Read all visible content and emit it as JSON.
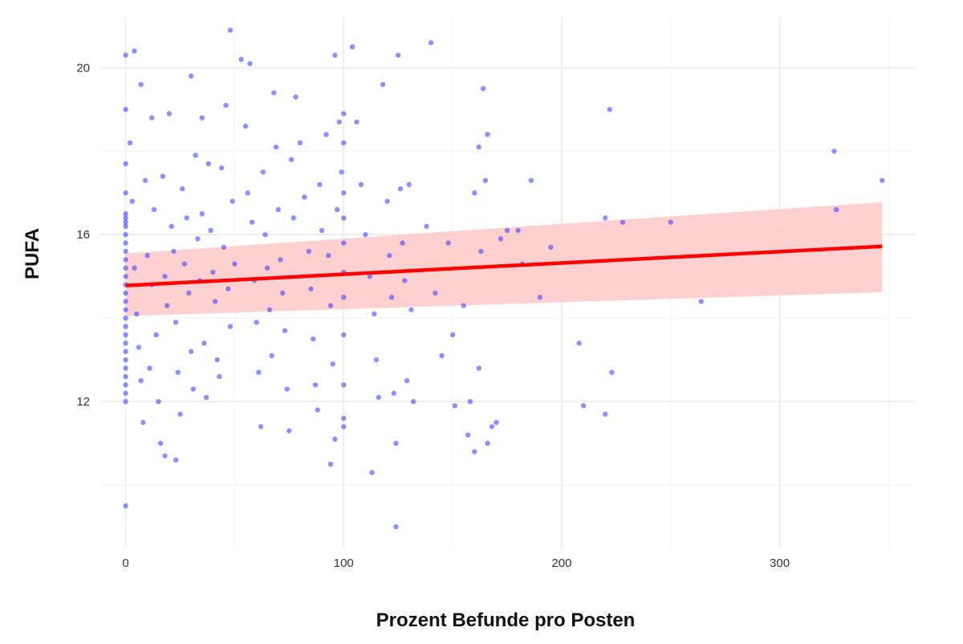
{
  "chart_data": {
    "type": "scatter",
    "title": "",
    "xlabel": "Prozent Befunde pro Posten",
    "ylabel": "PUFA",
    "xlim": [
      -12,
      362
    ],
    "ylim": [
      8.5,
      21.2
    ],
    "x_ticks": [
      0,
      100,
      200,
      300
    ],
    "x_tick_labels": [
      "0",
      "100",
      "200",
      "300"
    ],
    "x_minor_gridlines": [
      50,
      150,
      250,
      350
    ],
    "y_ticks": [
      12,
      16,
      20
    ],
    "y_tick_labels": [
      "12",
      "16",
      "20"
    ],
    "y_minor_gridlines": [
      10,
      14,
      18
    ],
    "grid": true,
    "legend": "none",
    "point_color": "#3333ff",
    "point_opacity": 0.55,
    "trend_line": {
      "color": "#ff0000",
      "x": [
        0,
        347
      ],
      "y": [
        14.78,
        15.72
      ]
    },
    "confidence_band": {
      "color": "#ffc8c8",
      "x": [
        0,
        347
      ],
      "lower": [
        14.05,
        14.62
      ],
      "upper": [
        15.55,
        16.78
      ]
    },
    "points": [
      [
        0,
        20.3
      ],
      [
        4,
        20.4
      ],
      [
        0,
        19.0
      ],
      [
        0,
        17.7
      ],
      [
        0,
        17.0
      ],
      [
        0,
        16.5
      ],
      [
        0,
        16.4
      ],
      [
        0,
        16.3
      ],
      [
        0,
        16.2
      ],
      [
        0,
        16.0
      ],
      [
        0,
        15.8
      ],
      [
        0,
        15.6
      ],
      [
        0,
        15.4
      ],
      [
        0,
        15.2
      ],
      [
        0,
        15.0
      ],
      [
        0,
        14.8
      ],
      [
        0,
        14.6
      ],
      [
        0,
        14.4
      ],
      [
        0,
        14.2
      ],
      [
        0,
        14.0
      ],
      [
        0,
        13.8
      ],
      [
        0,
        13.6
      ],
      [
        0,
        13.4
      ],
      [
        0,
        13.2
      ],
      [
        0,
        13.0
      ],
      [
        0,
        12.8
      ],
      [
        0,
        12.6
      ],
      [
        0,
        12.4
      ],
      [
        0,
        12.2
      ],
      [
        0,
        12.0
      ],
      [
        0,
        9.5
      ],
      [
        2,
        18.2
      ],
      [
        3,
        16.8
      ],
      [
        4,
        15.2
      ],
      [
        5,
        14.1
      ],
      [
        6,
        13.3
      ],
      [
        7,
        12.5
      ],
      [
        8,
        11.5
      ],
      [
        9,
        17.3
      ],
      [
        10,
        15.5
      ],
      [
        11,
        12.8
      ],
      [
        7,
        19.6
      ],
      [
        12,
        18.8
      ],
      [
        12,
        14.8
      ],
      [
        13,
        16.6
      ],
      [
        14,
        13.6
      ],
      [
        15,
        12.0
      ],
      [
        16,
        11.0
      ],
      [
        17,
        17.4
      ],
      [
        18,
        15.0
      ],
      [
        19,
        14.3
      ],
      [
        20,
        18.9
      ],
      [
        21,
        16.2
      ],
      [
        22,
        15.6
      ],
      [
        23,
        13.9
      ],
      [
        24,
        12.7
      ],
      [
        25,
        11.7
      ],
      [
        26,
        17.1
      ],
      [
        27,
        15.3
      ],
      [
        23,
        10.6
      ],
      [
        18,
        10.7
      ],
      [
        28,
        16.4
      ],
      [
        29,
        14.6
      ],
      [
        30,
        13.2
      ],
      [
        31,
        12.3
      ],
      [
        32,
        17.9
      ],
      [
        33,
        15.9
      ],
      [
        34,
        14.9
      ],
      [
        35,
        16.5
      ],
      [
        36,
        13.4
      ],
      [
        37,
        12.1
      ],
      [
        30,
        19.8
      ],
      [
        35,
        18.8
      ],
      [
        38,
        17.7
      ],
      [
        39,
        16.1
      ],
      [
        40,
        15.1
      ],
      [
        41,
        14.4
      ],
      [
        42,
        13.0
      ],
      [
        43,
        12.6
      ],
      [
        44,
        17.6
      ],
      [
        45,
        15.7
      ],
      [
        46,
        19.1
      ],
      [
        47,
        14.7
      ],
      [
        48,
        13.8
      ],
      [
        49,
        16.8
      ],
      [
        50,
        15.3
      ],
      [
        48,
        20.9
      ],
      [
        53,
        20.2
      ],
      [
        57,
        20.1
      ],
      [
        55,
        18.6
      ],
      [
        56,
        17.0
      ],
      [
        58,
        16.3
      ],
      [
        59,
        14.9
      ],
      [
        60,
        13.9
      ],
      [
        61,
        12.7
      ],
      [
        62,
        11.4
      ],
      [
        63,
        17.5
      ],
      [
        64,
        16.0
      ],
      [
        65,
        15.2
      ],
      [
        66,
        14.2
      ],
      [
        67,
        13.1
      ],
      [
        68,
        19.4
      ],
      [
        69,
        18.1
      ],
      [
        70,
        16.6
      ],
      [
        71,
        15.4
      ],
      [
        72,
        14.6
      ],
      [
        73,
        13.7
      ],
      [
        74,
        12.3
      ],
      [
        75,
        11.3
      ],
      [
        76,
        17.8
      ],
      [
        77,
        16.4
      ],
      [
        78,
        19.3
      ],
      [
        80,
        18.2
      ],
      [
        82,
        16.9
      ],
      [
        84,
        15.6
      ],
      [
        85,
        14.7
      ],
      [
        86,
        13.5
      ],
      [
        87,
        12.4
      ],
      [
        88,
        11.8
      ],
      [
        89,
        17.2
      ],
      [
        90,
        16.1
      ],
      [
        92,
        18.4
      ],
      [
        93,
        15.5
      ],
      [
        94,
        14.3
      ],
      [
        95,
        12.9
      ],
      [
        96,
        11.1
      ],
      [
        96,
        20.3
      ],
      [
        98,
        18.7
      ],
      [
        99,
        17.5
      ],
      [
        97,
        16.6
      ],
      [
        94,
        10.5
      ],
      [
        100,
        18.9
      ],
      [
        100,
        18.2
      ],
      [
        100,
        17.0
      ],
      [
        100,
        16.4
      ],
      [
        100,
        15.8
      ],
      [
        100,
        15.1
      ],
      [
        100,
        14.5
      ],
      [
        100,
        13.6
      ],
      [
        100,
        12.4
      ],
      [
        100,
        11.6
      ],
      [
        100,
        11.4
      ],
      [
        104,
        20.5
      ],
      [
        106,
        18.7
      ],
      [
        108,
        17.2
      ],
      [
        110,
        16.0
      ],
      [
        112,
        15.0
      ],
      [
        114,
        14.1
      ],
      [
        115,
        13.0
      ],
      [
        116,
        12.1
      ],
      [
        113,
        10.3
      ],
      [
        118,
        19.6
      ],
      [
        120,
        16.8
      ],
      [
        121,
        15.5
      ],
      [
        122,
        14.5
      ],
      [
        123,
        12.2
      ],
      [
        125,
        20.3
      ],
      [
        124,
        11.0
      ],
      [
        126,
        17.1
      ],
      [
        127,
        15.8
      ],
      [
        128,
        14.9
      ],
      [
        129,
        12.5
      ],
      [
        130,
        17.2
      ],
      [
        131,
        14.2
      ],
      [
        132,
        12.0
      ],
      [
        124,
        9.0
      ],
      [
        140,
        20.6
      ],
      [
        138,
        16.2
      ],
      [
        142,
        14.6
      ],
      [
        145,
        13.1
      ],
      [
        148,
        15.8
      ],
      [
        150,
        13.6
      ],
      [
        151,
        11.9
      ],
      [
        155,
        14.3
      ],
      [
        158,
        12.0
      ],
      [
        160,
        17.0
      ],
      [
        162,
        18.1
      ],
      [
        163,
        15.6
      ],
      [
        164,
        19.5
      ],
      [
        165,
        17.3
      ],
      [
        166,
        18.4
      ],
      [
        168,
        11.4
      ],
      [
        170,
        11.5
      ],
      [
        172,
        15.9
      ],
      [
        175,
        16.1
      ],
      [
        180,
        16.1
      ],
      [
        182,
        15.3
      ],
      [
        186,
        17.3
      ],
      [
        190,
        14.5
      ],
      [
        195,
        15.7
      ],
      [
        160,
        10.8
      ],
      [
        157,
        11.2
      ],
      [
        162,
        12.8
      ],
      [
        166,
        11.0
      ],
      [
        208,
        13.4
      ],
      [
        210,
        11.9
      ],
      [
        220,
        11.7
      ],
      [
        222,
        19.0
      ],
      [
        223,
        12.7
      ],
      [
        220,
        16.4
      ],
      [
        228,
        16.3
      ],
      [
        250,
        16.3
      ],
      [
        264,
        14.4
      ],
      [
        325,
        18.0
      ],
      [
        326,
        16.6
      ],
      [
        347,
        17.3
      ]
    ]
  }
}
